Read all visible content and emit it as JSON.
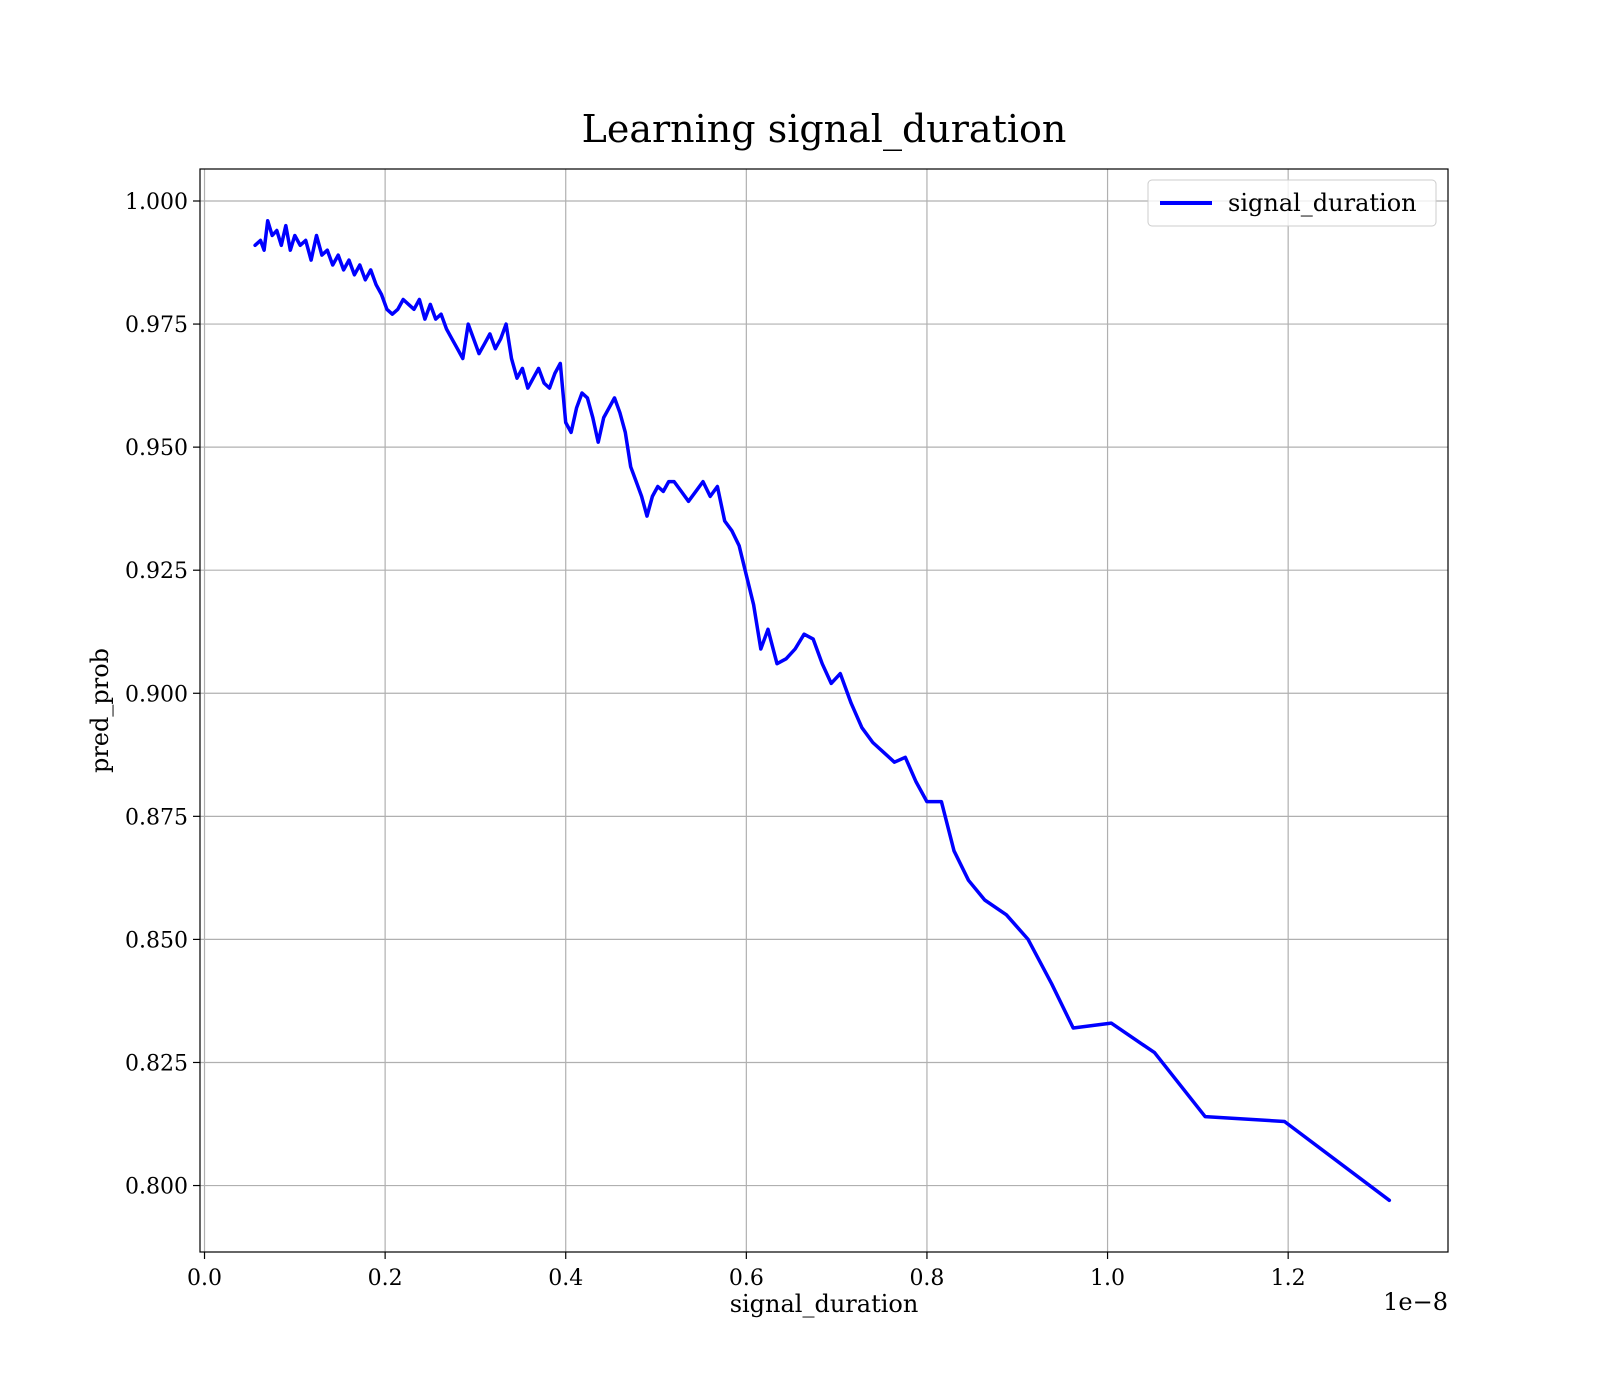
{
  "chart_data": {
    "type": "line",
    "title": "Learning signal_duration",
    "xlabel": "signal_duration",
    "ylabel": "pred_prob",
    "x_offset_text": "1e−8",
    "xlim": [
      -0.005,
      1.377
    ],
    "ylim": [
      0.7865,
      1.0065
    ],
    "x_ticks": [
      0.0,
      0.2,
      0.4,
      0.6,
      0.8,
      1.0,
      1.2
    ],
    "x_tick_labels": [
      "0.0",
      "0.2",
      "0.4",
      "0.6",
      "0.8",
      "1.0",
      "1.2"
    ],
    "y_ticks": [
      0.8,
      0.825,
      0.85,
      0.875,
      0.9,
      0.925,
      0.95,
      0.975,
      1.0
    ],
    "y_tick_labels": [
      "0.800",
      "0.825",
      "0.850",
      "0.875",
      "0.900",
      "0.925",
      "0.950",
      "0.975",
      "1.000"
    ],
    "grid": true,
    "legend_position": "top-right",
    "series": [
      {
        "name": "signal_duration",
        "color": "#0000ff",
        "x": [
          0.056,
          0.062,
          0.066,
          0.07,
          0.075,
          0.08,
          0.085,
          0.09,
          0.095,
          0.1,
          0.106,
          0.112,
          0.118,
          0.124,
          0.13,
          0.136,
          0.142,
          0.148,
          0.154,
          0.16,
          0.166,
          0.172,
          0.178,
          0.184,
          0.19,
          0.196,
          0.202,
          0.208,
          0.214,
          0.22,
          0.226,
          0.232,
          0.238,
          0.244,
          0.25,
          0.256,
          0.262,
          0.268,
          0.274,
          0.28,
          0.286,
          0.292,
          0.298,
          0.304,
          0.31,
          0.316,
          0.322,
          0.328,
          0.334,
          0.34,
          0.346,
          0.352,
          0.358,
          0.364,
          0.37,
          0.376,
          0.382,
          0.388,
          0.394,
          0.4,
          0.406,
          0.412,
          0.418,
          0.424,
          0.43,
          0.436,
          0.442,
          0.448,
          0.454,
          0.46,
          0.466,
          0.472,
          0.478,
          0.484,
          0.49,
          0.496,
          0.502,
          0.508,
          0.514,
          0.52,
          0.528,
          0.536,
          0.544,
          0.552,
          0.56,
          0.568,
          0.576,
          0.584,
          0.592,
          0.6,
          0.608,
          0.616,
          0.624,
          0.634,
          0.644,
          0.654,
          0.664,
          0.674,
          0.684,
          0.694,
          0.704,
          0.716,
          0.728,
          0.74,
          0.752,
          0.764,
          0.776,
          0.788,
          0.8,
          0.816,
          0.83,
          0.846,
          0.864,
          0.888,
          0.912,
          0.938,
          0.962,
          1.004,
          1.052,
          1.108,
          1.196,
          1.312
        ],
        "values": [
          0.991,
          0.992,
          0.99,
          0.996,
          0.993,
          0.994,
          0.991,
          0.995,
          0.99,
          0.993,
          0.991,
          0.992,
          0.988,
          0.993,
          0.989,
          0.99,
          0.987,
          0.989,
          0.986,
          0.988,
          0.985,
          0.987,
          0.984,
          0.986,
          0.983,
          0.981,
          0.978,
          0.977,
          0.978,
          0.98,
          0.979,
          0.978,
          0.98,
          0.976,
          0.979,
          0.976,
          0.977,
          0.974,
          0.972,
          0.97,
          0.968,
          0.975,
          0.972,
          0.969,
          0.971,
          0.973,
          0.97,
          0.972,
          0.975,
          0.968,
          0.964,
          0.966,
          0.962,
          0.964,
          0.966,
          0.963,
          0.962,
          0.965,
          0.967,
          0.955,
          0.953,
          0.958,
          0.961,
          0.96,
          0.956,
          0.951,
          0.956,
          0.958,
          0.96,
          0.957,
          0.953,
          0.946,
          0.943,
          0.94,
          0.936,
          0.94,
          0.942,
          0.941,
          0.943,
          0.943,
          0.941,
          0.939,
          0.941,
          0.943,
          0.94,
          0.942,
          0.935,
          0.933,
          0.93,
          0.924,
          0.918,
          0.909,
          0.913,
          0.906,
          0.907,
          0.909,
          0.912,
          0.911,
          0.906,
          0.902,
          0.904,
          0.898,
          0.893,
          0.89,
          0.888,
          0.886,
          0.887,
          0.882,
          0.878,
          0.878,
          0.868,
          0.862,
          0.858,
          0.855,
          0.85,
          0.841,
          0.832,
          0.833,
          0.827,
          0.814,
          0.813,
          0.797
        ]
      }
    ]
  }
}
